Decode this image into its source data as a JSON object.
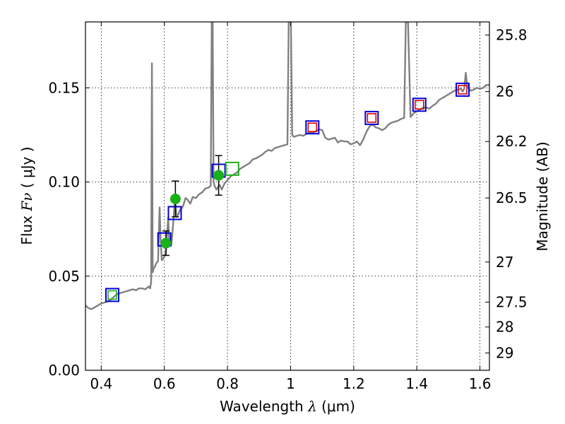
{
  "chart_data": {
    "type": "scatter",
    "xlabel": {
      "prefix": "Wavelength  ",
      "symbol": "λ",
      "suffix": " (μm)"
    },
    "ylabel": {
      "prefix": "Flux  ",
      "symbol": "Fν",
      "suffix": "  (  μJy )"
    },
    "ylabel_right": "Magnitude (AB)",
    "xlim": [
      0.35,
      1.63
    ],
    "ylim": [
      0.0,
      0.185
    ],
    "grid": true,
    "x_ticks": [
      {
        "v": 0.4,
        "label": "0.4"
      },
      {
        "v": 0.6,
        "label": "0.6"
      },
      {
        "v": 0.8,
        "label": "0.8"
      },
      {
        "v": 1.0,
        "label": "1"
      },
      {
        "v": 1.2,
        "label": "1.2"
      },
      {
        "v": 1.4,
        "label": "1.4"
      },
      {
        "v": 1.6,
        "label": "1.6"
      }
    ],
    "y_ticks": [
      {
        "v": 0.0,
        "label": "0.00"
      },
      {
        "v": 0.05,
        "label": "0.05"
      },
      {
        "v": 0.1,
        "label": "0.10"
      },
      {
        "v": 0.15,
        "label": "0.15"
      }
    ],
    "mag_ticks": [
      {
        "v": 0.178,
        "label": "25.8"
      },
      {
        "v": 0.148,
        "label": "26"
      },
      {
        "v": 0.1215,
        "label": "26.2"
      },
      {
        "v": 0.0915,
        "label": "26.5"
      },
      {
        "v": 0.0575,
        "label": "27"
      },
      {
        "v": 0.0362,
        "label": "27.5"
      },
      {
        "v": 0.023,
        "label": "28"
      },
      {
        "v": 0.0092,
        "label": "29"
      }
    ],
    "model_spectrum": {
      "color": "#808080",
      "points": [
        [
          0.35,
          0.0345
        ],
        [
          0.36,
          0.033
        ],
        [
          0.37,
          0.0325
        ],
        [
          0.38,
          0.0335
        ],
        [
          0.39,
          0.0345
        ],
        [
          0.4,
          0.0355
        ],
        [
          0.41,
          0.036
        ],
        [
          0.42,
          0.0365
        ],
        [
          0.43,
          0.0375
        ],
        [
          0.44,
          0.039
        ],
        [
          0.45,
          0.0405
        ],
        [
          0.46,
          0.041
        ],
        [
          0.47,
          0.0415
        ],
        [
          0.48,
          0.042
        ],
        [
          0.49,
          0.0425
        ],
        [
          0.5,
          0.043
        ],
        [
          0.51,
          0.0425
        ],
        [
          0.52,
          0.0435
        ],
        [
          0.53,
          0.0435
        ],
        [
          0.54,
          0.043
        ],
        [
          0.55,
          0.0445
        ],
        [
          0.555,
          0.0435
        ],
        [
          0.558,
          0.047
        ],
        [
          0.5605,
          0.163
        ],
        [
          0.563,
          0.052
        ],
        [
          0.566,
          0.054
        ],
        [
          0.57,
          0.055
        ],
        [
          0.575,
          0.057
        ],
        [
          0.58,
          0.058
        ],
        [
          0.585,
          0.0865
        ],
        [
          0.588,
          0.07
        ],
        [
          0.592,
          0.0585
        ],
        [
          0.598,
          0.0595
        ],
        [
          0.605,
          0.063
        ],
        [
          0.612,
          0.081
        ],
        [
          0.616,
          0.066
        ],
        [
          0.622,
          0.0665
        ],
        [
          0.628,
          0.078
        ],
        [
          0.634,
          0.092
        ],
        [
          0.639,
          0.0815
        ],
        [
          0.645,
          0.083
        ],
        [
          0.65,
          0.0855
        ],
        [
          0.655,
          0.086
        ],
        [
          0.66,
          0.0875
        ],
        [
          0.667,
          0.0915
        ],
        [
          0.674,
          0.0905
        ],
        [
          0.682,
          0.0885
        ],
        [
          0.69,
          0.092
        ],
        [
          0.7,
          0.0915
        ],
        [
          0.71,
          0.0935
        ],
        [
          0.72,
          0.0945
        ],
        [
          0.73,
          0.0965
        ],
        [
          0.74,
          0.097
        ],
        [
          0.747,
          0.098
        ],
        [
          0.75,
          0.185
        ],
        [
          0.753,
          0.185
        ],
        [
          0.756,
          0.1
        ],
        [
          0.76,
          0.0975
        ],
        [
          0.765,
          0.096
        ],
        [
          0.775,
          0.0985
        ],
        [
          0.782,
          0.096
        ],
        [
          0.79,
          0.099
        ],
        [
          0.8,
          0.101
        ],
        [
          0.81,
          0.103
        ],
        [
          0.82,
          0.104
        ],
        [
          0.83,
          0.105
        ],
        [
          0.84,
          0.107
        ],
        [
          0.85,
          0.108
        ],
        [
          0.86,
          0.109
        ],
        [
          0.87,
          0.11
        ],
        [
          0.88,
          0.112
        ],
        [
          0.89,
          0.1125
        ],
        [
          0.9,
          0.1135
        ],
        [
          0.91,
          0.1145
        ],
        [
          0.92,
          0.116
        ],
        [
          0.93,
          0.117
        ],
        [
          0.94,
          0.1165
        ],
        [
          0.95,
          0.118
        ],
        [
          0.96,
          0.1185
        ],
        [
          0.97,
          0.119
        ],
        [
          0.98,
          0.1195
        ],
        [
          0.99,
          0.12
        ],
        [
          0.994,
          0.185
        ],
        [
          1.001,
          0.185
        ],
        [
          1.005,
          0.125
        ],
        [
          1.01,
          0.124
        ],
        [
          1.02,
          0.1245
        ],
        [
          1.03,
          0.125
        ],
        [
          1.04,
          0.1245
        ],
        [
          1.05,
          0.1255
        ],
        [
          1.06,
          0.1265
        ],
        [
          1.07,
          0.126
        ],
        [
          1.08,
          0.127
        ],
        [
          1.09,
          0.128
        ],
        [
          1.1,
          0.1275
        ],
        [
          1.11,
          0.1235
        ],
        [
          1.12,
          0.1225
        ],
        [
          1.13,
          0.123
        ],
        [
          1.14,
          0.1235
        ],
        [
          1.15,
          0.121
        ],
        [
          1.16,
          0.122
        ],
        [
          1.17,
          0.1215
        ],
        [
          1.18,
          0.1215
        ],
        [
          1.19,
          0.12
        ],
        [
          1.2,
          0.1205
        ],
        [
          1.21,
          0.1215
        ],
        [
          1.22,
          0.1195
        ],
        [
          1.23,
          0.1225
        ],
        [
          1.24,
          0.1265
        ],
        [
          1.25,
          0.1295
        ],
        [
          1.26,
          0.1305
        ],
        [
          1.27,
          0.129
        ],
        [
          1.28,
          0.1285
        ],
        [
          1.29,
          0.1275
        ],
        [
          1.3,
          0.1285
        ],
        [
          1.31,
          0.1305
        ],
        [
          1.32,
          0.1315
        ],
        [
          1.33,
          0.132
        ],
        [
          1.34,
          0.1325
        ],
        [
          1.35,
          0.1335
        ],
        [
          1.36,
          0.134
        ],
        [
          1.365,
          0.185
        ],
        [
          1.372,
          0.185
        ],
        [
          1.38,
          0.1345
        ],
        [
          1.39,
          0.1365
        ],
        [
          1.4,
          0.1375
        ],
        [
          1.41,
          0.1385
        ],
        [
          1.42,
          0.1395
        ],
        [
          1.43,
          0.1395
        ],
        [
          1.44,
          0.139
        ],
        [
          1.45,
          0.1405
        ],
        [
          1.46,
          0.1415
        ],
        [
          1.47,
          0.1435
        ],
        [
          1.48,
          0.1445
        ],
        [
          1.49,
          0.1455
        ],
        [
          1.5,
          0.1465
        ],
        [
          1.51,
          0.1475
        ],
        [
          1.52,
          0.1485
        ],
        [
          1.53,
          0.149
        ],
        [
          1.54,
          0.1495
        ],
        [
          1.545,
          0.148
        ],
        [
          1.55,
          0.1495
        ],
        [
          1.555,
          0.158
        ],
        [
          1.56,
          0.1505
        ],
        [
          1.57,
          0.1485
        ],
        [
          1.58,
          0.149
        ],
        [
          1.59,
          0.15
        ],
        [
          1.6,
          0.1495
        ],
        [
          1.61,
          0.15
        ],
        [
          1.62,
          0.1515
        ],
        [
          1.63,
          0.1515
        ]
      ]
    },
    "observed": {
      "color": "#1ab01a",
      "points": [
        {
          "x": 0.605,
          "y": 0.0675,
          "err": 0.0065
        },
        {
          "x": 0.635,
          "y": 0.091,
          "err": 0.0095
        },
        {
          "x": 0.772,
          "y": 0.1035,
          "err": 0.0105
        }
      ]
    },
    "model_photometry": {
      "color": "#0000dd",
      "points": [
        {
          "x": 0.435,
          "y": 0.04
        },
        {
          "x": 0.6,
          "y": 0.0695
        },
        {
          "x": 0.633,
          "y": 0.0835
        },
        {
          "x": 0.772,
          "y": 0.106
        },
        {
          "x": 1.069,
          "y": 0.129
        },
        {
          "x": 1.257,
          "y": 0.134
        },
        {
          "x": 1.408,
          "y": 0.141
        },
        {
          "x": 1.545,
          "y": 0.149
        }
      ]
    },
    "inner_markers": [
      {
        "x": 0.435,
        "y": 0.04,
        "color": "#1ab01a"
      },
      {
        "x": 0.815,
        "y": 0.107,
        "color": "#1ab01a",
        "outer": true
      },
      {
        "x": 1.069,
        "y": 0.129,
        "color": "#dd0000"
      },
      {
        "x": 1.257,
        "y": 0.134,
        "color": "#dd0000"
      },
      {
        "x": 1.408,
        "y": 0.141,
        "color": "#dd0000"
      },
      {
        "x": 1.545,
        "y": 0.149,
        "color": "#dd0000"
      }
    ]
  }
}
